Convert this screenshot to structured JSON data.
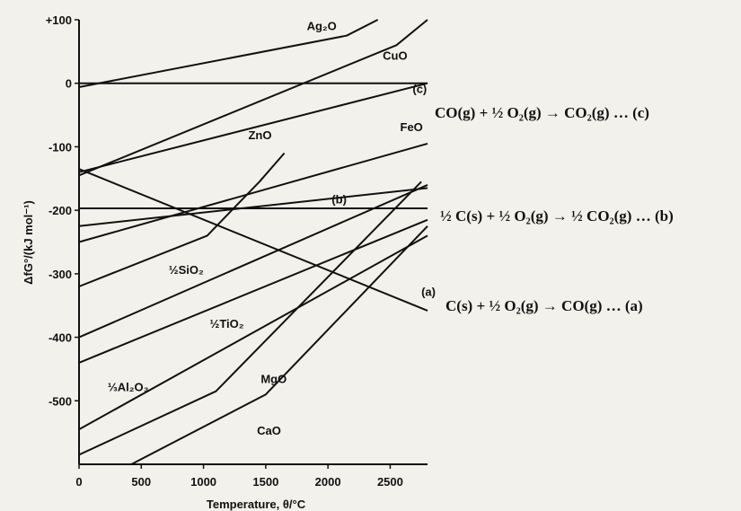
{
  "chart_data": {
    "type": "line",
    "title": "",
    "xlabel": "Temperature, θ/°C",
    "ylabel": "ΔfG°/(kJ mol⁻¹)",
    "xlim": [
      0,
      2800
    ],
    "ylim": [
      -600,
      100
    ],
    "x_ticks": [
      0,
      500,
      1000,
      1500,
      2000,
      2500
    ],
    "y_ticks": [
      {
        "value": 100,
        "label": "+100"
      },
      {
        "value": 0,
        "label": "0"
      },
      {
        "value": -100,
        "label": "-100"
      },
      {
        "value": -200,
        "label": "-200"
      },
      {
        "value": -300,
        "label": "-300"
      },
      {
        "value": -400,
        "label": "-400"
      },
      {
        "value": -500,
        "label": "-500"
      }
    ],
    "grid": false,
    "series": [
      {
        "name": "Ag₂O",
        "points": [
          [
            0,
            -6
          ],
          [
            2150,
            75
          ],
          [
            2400,
            100
          ]
        ],
        "label_at": [
          1830,
          84
        ]
      },
      {
        "name": "CuO",
        "points": [
          [
            0,
            -145
          ],
          [
            2550,
            60
          ],
          [
            2800,
            100
          ]
        ],
        "label_at": [
          2440,
          37
        ]
      },
      {
        "name": "(c)",
        "points": [
          [
            0,
            -140
          ],
          [
            2800,
            0
          ]
        ],
        "label_at": [
          2680,
          -15
        ]
      },
      {
        "name": "FeO",
        "points": [
          [
            0,
            -250
          ],
          [
            2800,
            -95
          ]
        ],
        "label_at": [
          2580,
          -75
        ]
      },
      {
        "name": "ZnO",
        "points": [
          [
            0,
            -320
          ],
          [
            1030,
            -240
          ],
          [
            1450,
            -155
          ],
          [
            1650,
            -110
          ]
        ],
        "label_at": [
          1360,
          -88
        ]
      },
      {
        "name": "(b)",
        "points": [
          [
            0,
            -197
          ],
          [
            2800,
            -197
          ]
        ],
        "label_at": [
          2030,
          -189
        ]
      },
      {
        "name": "(a)",
        "points": [
          [
            0,
            -135
          ],
          [
            2800,
            -358
          ]
        ],
        "label_at": [
          2750,
          -335
        ]
      },
      {
        "name": "½SiO₂",
        "points": [
          [
            0,
            -400
          ],
          [
            2800,
            -160
          ]
        ],
        "label_at": [
          720,
          -300
        ]
      },
      {
        "name": "½TiO₂",
        "points": [
          [
            0,
            -440
          ],
          [
            2800,
            -215
          ]
        ],
        "label_at": [
          1050,
          -385
        ]
      },
      {
        "name": "⅓Al₂O₃",
        "points": [
          [
            0,
            -545
          ],
          [
            2800,
            -240
          ]
        ],
        "label_at": [
          230,
          -485
        ]
      },
      {
        "name": "MgO",
        "points": [
          [
            0,
            -585
          ],
          [
            1100,
            -485
          ],
          [
            2750,
            -155
          ]
        ],
        "label_at": [
          1460,
          -472
        ]
      },
      {
        "name": "CaO",
        "points": [
          [
            420,
            -600
          ],
          [
            1500,
            -490
          ],
          [
            2800,
            -225
          ]
        ],
        "label_at": [
          1430,
          -553
        ]
      },
      {
        "name": "",
        "points": [
          [
            0,
            -225
          ],
          [
            2800,
            -165
          ]
        ]
      }
    ],
    "equations": [
      {
        "id": "c",
        "text": "CO(g) + ½ O₂(g) → CO₂(g) … (c)"
      },
      {
        "id": "b",
        "text": "½ C(s) + ½ O₂(g) → ½ CO₂(g) … (b)"
      },
      {
        "id": "a",
        "text": "C(s) + ½ O₂(g) → CO(g) … (a)"
      }
    ],
    "colors": {
      "line": "#111111",
      "background": "#f3f1ec"
    }
  }
}
